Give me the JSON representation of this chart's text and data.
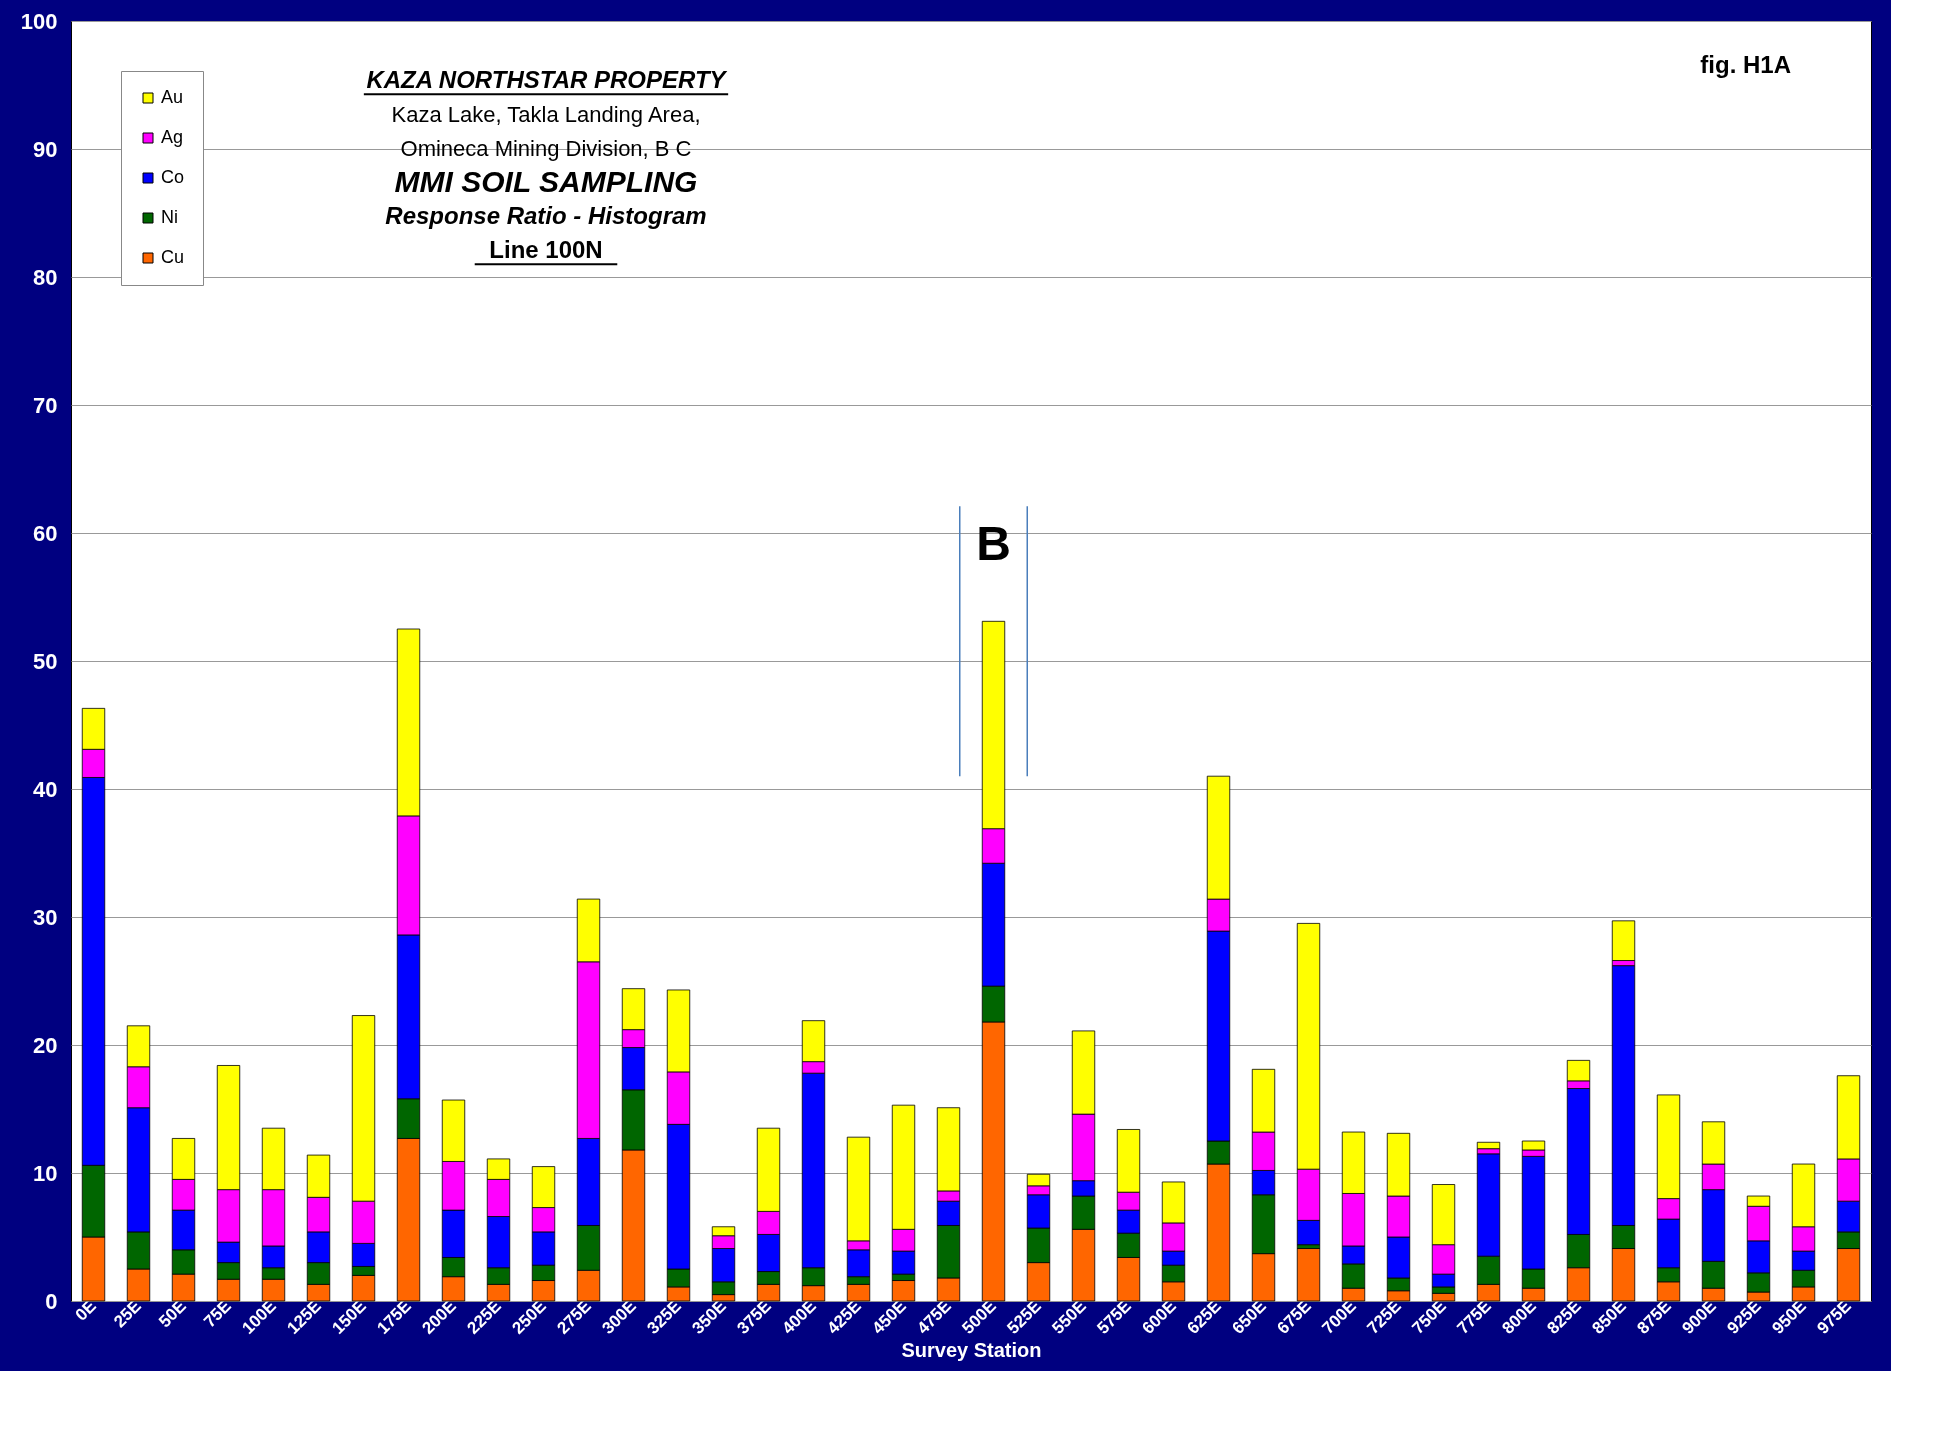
{
  "chart_data": {
    "type": "bar",
    "stacked": true,
    "title": "MMI SOIL SAMPLING",
    "subtitle": "Response Ratio - Histogram",
    "xlabel": "Survey Station",
    "annotations": [
      "KAZA NORTHSTAR PROPERTY",
      "Kaza Lake, Takla Landing Area,",
      "Omineca Mining Division, B C",
      "Line 100N",
      "fig. H1A",
      "B"
    ],
    "categories": [
      "0E",
      "25E",
      "50E",
      "75E",
      "100E",
      "125E",
      "150E",
      "175E",
      "200E",
      "225E",
      "250E",
      "275E",
      "300E",
      "325E",
      "350E",
      "375E",
      "400E",
      "425E",
      "450E",
      "475E",
      "500E",
      "525E",
      "550E",
      "575E",
      "600E",
      "625E",
      "650E",
      "675E",
      "700E",
      "725E",
      "750E",
      "775E",
      "800E",
      "825E",
      "850E",
      "875E",
      "900E",
      "925E",
      "950E",
      "975E"
    ],
    "series": [
      {
        "name": "Cu",
        "color": "#ff6600",
        "values": [
          5.0,
          2.5,
          2.1,
          1.7,
          1.7,
          1.3,
          2.0,
          12.7,
          1.9,
          1.3,
          1.6,
          2.4,
          11.8,
          1.1,
          0.5,
          1.3,
          1.2,
          1.3,
          1.6,
          1.8,
          21.8,
          3.0,
          5.6,
          3.4,
          1.5,
          10.7,
          3.7,
          4.1,
          1.0,
          0.8,
          0.6,
          1.3,
          1.0,
          2.6,
          4.1,
          1.5,
          1.0,
          0.7,
          1.1,
          4.1
        ]
      },
      {
        "name": "Ni",
        "color": "#006600",
        "values": [
          5.6,
          2.9,
          1.9,
          1.3,
          0.9,
          1.7,
          0.7,
          3.1,
          1.5,
          1.3,
          1.2,
          3.5,
          4.7,
          1.4,
          1.0,
          1.0,
          1.4,
          0.6,
          0.5,
          4.1,
          2.8,
          2.7,
          2.6,
          1.9,
          1.3,
          1.8,
          4.6,
          0.3,
          1.9,
          1.0,
          0.5,
          2.2,
          1.5,
          2.6,
          1.8,
          1.1,
          2.1,
          1.5,
          1.3,
          1.3
        ]
      },
      {
        "name": "Co",
        "color": "#0000ff",
        "values": [
          30.3,
          9.7,
          3.1,
          1.6,
          1.7,
          2.4,
          1.8,
          12.8,
          3.7,
          4.0,
          2.6,
          6.8,
          3.3,
          11.3,
          2.6,
          2.9,
          15.2,
          2.1,
          1.8,
          1.9,
          9.6,
          2.6,
          1.2,
          1.8,
          1.1,
          16.4,
          1.9,
          1.9,
          1.4,
          3.2,
          1.0,
          8.0,
          8.8,
          11.4,
          20.3,
          3.8,
          5.6,
          2.5,
          1.5,
          2.4
        ]
      },
      {
        "name": "Ag",
        "color": "#ff00ff",
        "values": [
          2.2,
          3.2,
          2.4,
          4.1,
          4.4,
          2.7,
          3.3,
          9.3,
          3.8,
          2.9,
          1.9,
          13.8,
          1.4,
          4.1,
          1.0,
          1.8,
          0.9,
          0.7,
          1.7,
          0.8,
          2.7,
          0.7,
          5.2,
          1.4,
          2.2,
          2.5,
          3.0,
          4.0,
          4.1,
          3.2,
          2.3,
          0.4,
          0.5,
          0.6,
          0.4,
          1.6,
          2.0,
          2.7,
          1.9,
          3.3
        ]
      },
      {
        "name": "Au",
        "color": "#ffff00",
        "values": [
          3.2,
          3.2,
          3.2,
          9.7,
          4.8,
          3.3,
          14.5,
          14.6,
          4.8,
          1.6,
          3.2,
          4.9,
          3.2,
          6.4,
          0.7,
          6.5,
          3.2,
          8.1,
          9.7,
          6.5,
          16.2,
          0.9,
          6.5,
          4.9,
          3.2,
          9.6,
          4.9,
          19.2,
          4.8,
          4.9,
          4.7,
          0.5,
          0.7,
          1.6,
          3.1,
          8.1,
          3.3,
          0.8,
          4.9,
          6.5
        ]
      }
    ],
    "ylim": [
      0,
      100
    ],
    "yticks": [
      0,
      10,
      20,
      30,
      40,
      50,
      60,
      70,
      80,
      90,
      100
    ],
    "grid": "y",
    "legend": "top left"
  }
}
